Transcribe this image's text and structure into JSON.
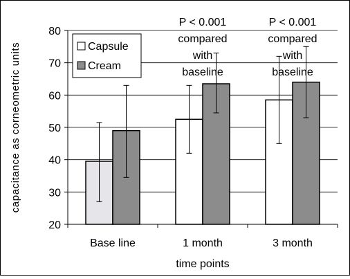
{
  "chart_data": {
    "type": "bar",
    "title": "",
    "xlabel": "time points",
    "ylabel": "capacitance as corneometric units",
    "categories": [
      "Base line",
      "1 month",
      "3 month"
    ],
    "ylim": [
      20,
      80
    ],
    "yticks": [
      20,
      30,
      40,
      50,
      60,
      70,
      80
    ],
    "grid": true,
    "legend_position": "top-left",
    "series": [
      {
        "name": "Capsule",
        "values": [
          39.5,
          52.5,
          58.5
        ],
        "error_low": [
          27,
          42,
          45
        ],
        "error_high": [
          51.5,
          63,
          72
        ],
        "fill": "#e6e6ea",
        "fill_by_category": [
          "#e6e6ea",
          "#ffffff",
          "#ffffff"
        ]
      },
      {
        "name": "Cream",
        "values": [
          49,
          63.5,
          64
        ],
        "error_low": [
          34.5,
          54.5,
          53
        ],
        "error_high": [
          63,
          73,
          75
        ],
        "fill": "#8c8c8c"
      }
    ],
    "annotations": [
      {
        "category_index": 1,
        "lines": [
          "P  < 0.001",
          "compared",
          "with",
          "baseline"
        ]
      },
      {
        "category_index": 2,
        "lines": [
          "P  < 0.001",
          "compared",
          "with",
          "baseline"
        ]
      }
    ]
  }
}
